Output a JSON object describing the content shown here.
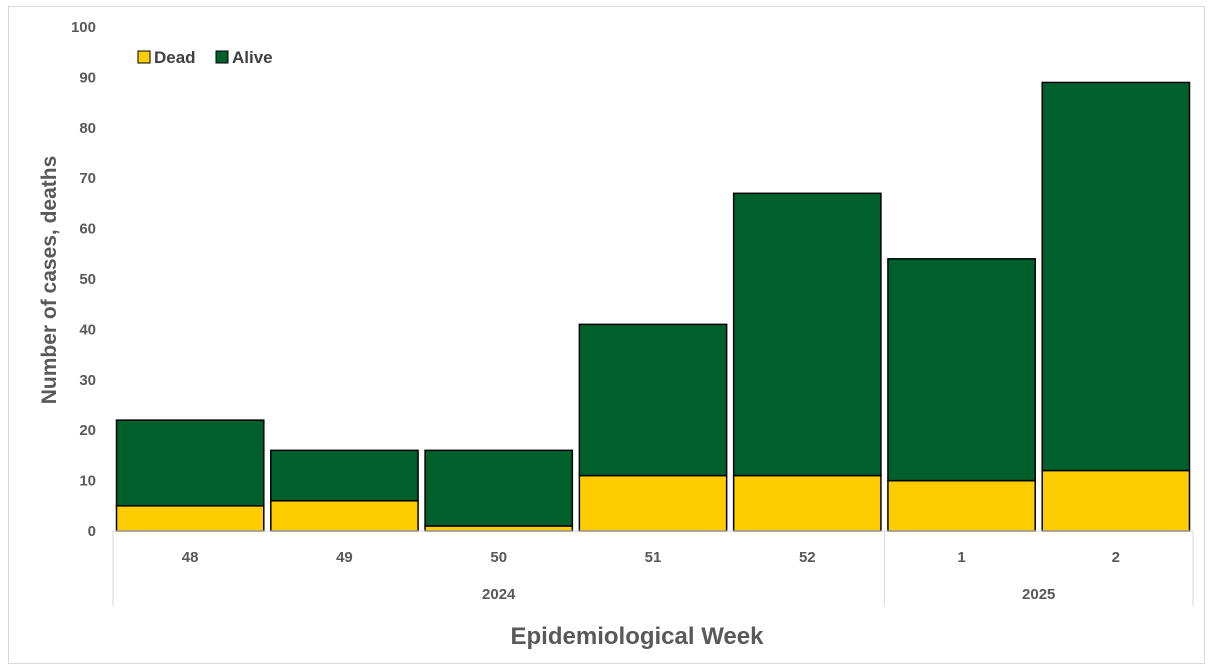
{
  "chart_data": {
    "type": "bar",
    "stacked": true,
    "categories": [
      "48",
      "49",
      "50",
      "51",
      "52",
      "1",
      "2"
    ],
    "groups": [
      {
        "label": "2024",
        "categories": [
          "48",
          "49",
          "50",
          "51",
          "52"
        ]
      },
      {
        "label": "2025",
        "categories": [
          "1",
          "2"
        ]
      }
    ],
    "series": [
      {
        "name": "Dead",
        "color": "#ffcc00",
        "values": [
          5,
          6,
          1,
          11,
          11,
          10,
          12
        ]
      },
      {
        "name": "Alive",
        "color": "#00602b",
        "values": [
          17,
          10,
          15,
          30,
          56,
          44,
          77
        ]
      }
    ],
    "ylim": [
      0,
      100
    ],
    "yticks": [
      "0",
      "10",
      "20",
      "30",
      "40",
      "50",
      "60",
      "70",
      "80",
      "90",
      "100"
    ],
    "xlabel": "Epidemiological Week",
    "ylabel": "Number of cases, deaths",
    "legend": "top-left",
    "grid": false
  }
}
